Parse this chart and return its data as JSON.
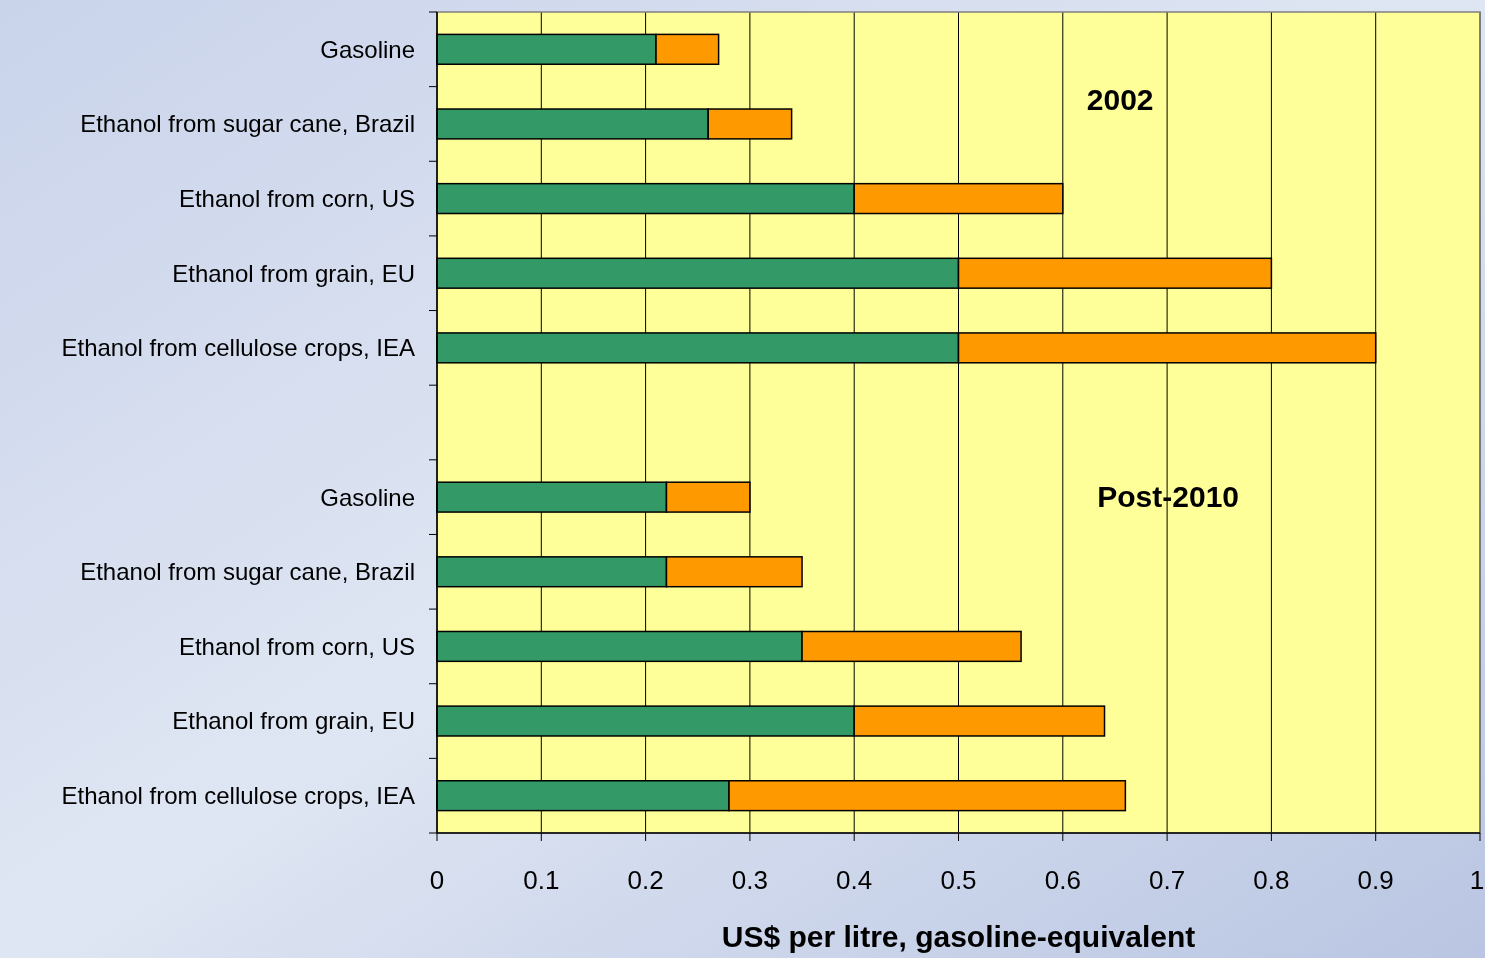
{
  "chart_data": {
    "type": "bar",
    "orientation": "horizontal",
    "stacked": true,
    "categories": [
      "Gasoline",
      "Ethanol from sugar cane, Brazil",
      "Ethanol from corn, US",
      "Ethanol from grain, EU",
      "Ethanol from cellulose crops, IEA",
      null,
      "Gasoline",
      "Ethanol from sugar cane, Brazil",
      "Ethanol from corn, US",
      "Ethanol from grain, EU",
      "Ethanol from cellulose crops, IEA"
    ],
    "series": [
      {
        "color": "#339966",
        "values": [
          0.21,
          0.26,
          0.4,
          0.5,
          0.5,
          null,
          0.22,
          0.22,
          0.35,
          0.4,
          0.28
        ]
      },
      {
        "color": "#ff9900",
        "values": [
          0.06,
          0.08,
          0.2,
          0.3,
          0.4,
          null,
          0.08,
          0.13,
          0.21,
          0.24,
          0.38
        ]
      }
    ],
    "xlim": [
      0,
      1
    ],
    "xticks": [
      0,
      0.1,
      0.2,
      0.3,
      0.4,
      0.5,
      0.6,
      0.7,
      0.8,
      0.9,
      1
    ],
    "grid": "x",
    "xlabel": "US$ per litre, gasoline-equivalent",
    "annotations": [
      "2002",
      "Post-2010"
    ]
  }
}
